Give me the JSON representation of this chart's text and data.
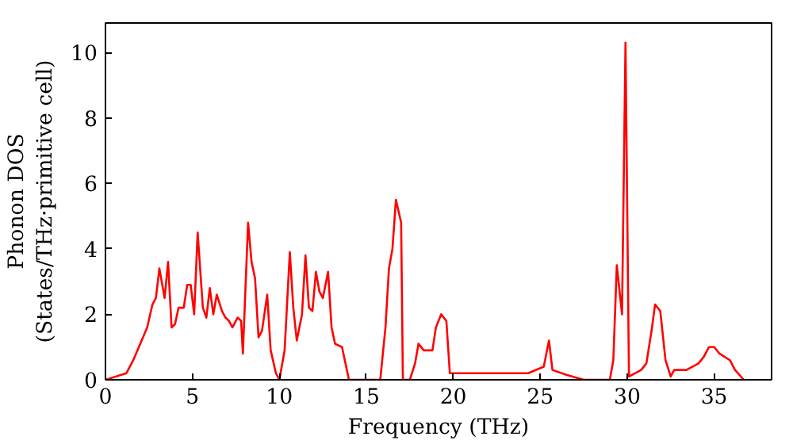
{
  "chart_data": {
    "type": "line",
    "xlabel": "Frequency (THz)",
    "ylabel": "Phonon DOS\n(States/THz·primitive cell)",
    "x": [
      0,
      1.2,
      1.6,
      2.4,
      2.7,
      2.9,
      3.1,
      3.4,
      3.6,
      3.8,
      4.0,
      4.2,
      4.5,
      4.7,
      4.9,
      5.1,
      5.3,
      5.6,
      5.8,
      6.0,
      6.2,
      6.4,
      6.7,
      6.9,
      7.1,
      7.3,
      7.6,
      7.8,
      7.9,
      8.2,
      8.4,
      8.6,
      8.8,
      9.0,
      9.3,
      9.5,
      9.8,
      10.0,
      10.3,
      10.6,
      10.8,
      11.0,
      11.3,
      11.5,
      11.7,
      11.9,
      12.1,
      12.3,
      12.5,
      12.8,
      13.0,
      13.2,
      13.6,
      14.0,
      15.8,
      16.1,
      16.3,
      16.5,
      16.7,
      17.0,
      17.1,
      17.5,
      17.8,
      18.0,
      18.3,
      18.8,
      19.0,
      19.3,
      19.6,
      19.8,
      21.8,
      24.3,
      25.2,
      25.5,
      25.7,
      26.5,
      27.5,
      29.0,
      29.2,
      29.4,
      29.7,
      29.9,
      30.1,
      30.8,
      31.1,
      31.4,
      31.6,
      31.9,
      32.2,
      32.5,
      32.7,
      33.4,
      34.1,
      34.4,
      34.7,
      35.0,
      35.3,
      35.9,
      36.2,
      36.7
    ],
    "series": [
      {
        "color": "#ff0000",
        "values": [
          0,
          0.2,
          0.6,
          1.6,
          2.3,
          2.5,
          3.4,
          2.5,
          3.6,
          1.6,
          1.7,
          2.2,
          2.2,
          2.9,
          2.9,
          2.0,
          4.5,
          2.2,
          1.9,
          2.8,
          2.0,
          2.6,
          2.1,
          1.9,
          1.8,
          1.6,
          1.9,
          1.8,
          0.8,
          4.8,
          3.6,
          3.1,
          1.3,
          1.5,
          2.6,
          0.9,
          0.2,
          0,
          0.9,
          3.9,
          2.2,
          1.2,
          2.0,
          3.8,
          2.2,
          2.1,
          3.3,
          2.7,
          2.5,
          3.3,
          1.6,
          1.1,
          1.0,
          0,
          0,
          1.6,
          3.4,
          4.0,
          5.5,
          4.8,
          0,
          0,
          0.5,
          1.1,
          0.9,
          0.9,
          1.6,
          2.0,
          1.8,
          0.2,
          0.2,
          0.2,
          0.4,
          1.2,
          0.3,
          0.15,
          0,
          0,
          0.6,
          3.5,
          2.0,
          10.3,
          0.1,
          0.3,
          0.5,
          1.5,
          2.3,
          2.1,
          0.6,
          0.1,
          0.3,
          0.3,
          0.5,
          0.7,
          1.0,
          1.0,
          0.8,
          0.6,
          0.3,
          0
        ]
      }
    ],
    "xlim": [
      0,
      38.3
    ],
    "ylim": [
      0,
      10.9
    ],
    "xticks": [
      0,
      5,
      10,
      15,
      20,
      25,
      30,
      35
    ],
    "yticks": [
      0,
      2,
      4,
      6,
      8,
      10
    ],
    "grid": false
  }
}
